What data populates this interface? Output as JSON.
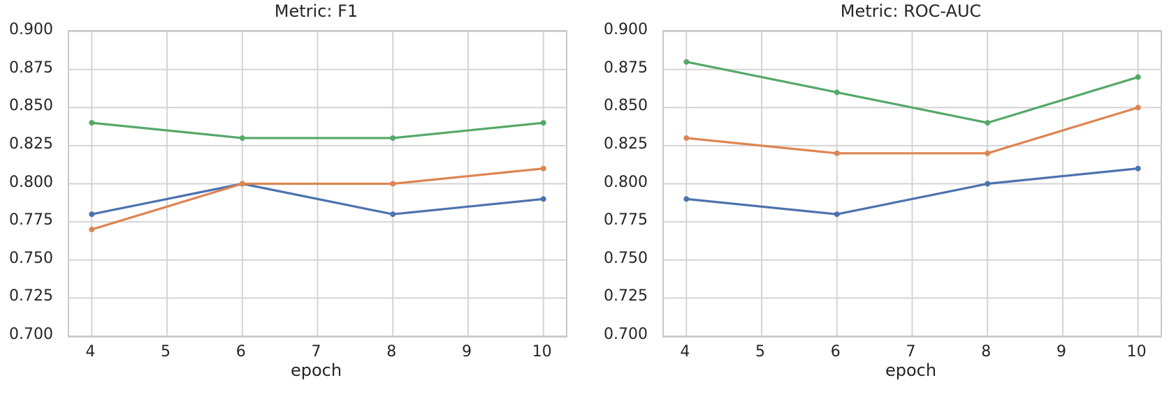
{
  "style": {
    "background": "#ffffff",
    "grid_color": "#d4d4d4",
    "spine_color": "#c9c9c9",
    "text_color": "#262626"
  },
  "chart_data": [
    {
      "type": "line",
      "title": "Metric: F1",
      "xlabel": "epoch",
      "ylabel": "",
      "x": [
        4,
        6,
        8,
        10
      ],
      "xlim": [
        3.7,
        10.3
      ],
      "ylim": [
        0.7,
        0.9
      ],
      "xticks": [
        4,
        5,
        6,
        7,
        8,
        9,
        10
      ],
      "xtick_labels": [
        "4",
        "5",
        "6",
        "7",
        "8",
        "9",
        "10"
      ],
      "yticks": [
        0.7,
        0.725,
        0.75,
        0.775,
        0.8,
        0.825,
        0.85,
        0.875,
        0.9
      ],
      "ytick_labels": [
        "0.700",
        "0.725",
        "0.750",
        "0.775",
        "0.800",
        "0.825",
        "0.850",
        "0.875",
        "0.900"
      ],
      "grid": true,
      "legend": "none",
      "series": [
        {
          "name": "blue",
          "color": "#4C72B0",
          "values": [
            0.78,
            0.8,
            0.78,
            0.79
          ]
        },
        {
          "name": "orange",
          "color": "#DD8452",
          "values": [
            0.77,
            0.8,
            0.8,
            0.81
          ]
        },
        {
          "name": "green",
          "color": "#55A868",
          "values": [
            0.84,
            0.83,
            0.83,
            0.84
          ]
        }
      ]
    },
    {
      "type": "line",
      "title": "Metric: ROC-AUC",
      "xlabel": "epoch",
      "ylabel": "",
      "x": [
        4,
        6,
        8,
        10
      ],
      "xlim": [
        3.7,
        10.3
      ],
      "ylim": [
        0.7,
        0.9
      ],
      "xticks": [
        4,
        5,
        6,
        7,
        8,
        9,
        10
      ],
      "xtick_labels": [
        "4",
        "5",
        "6",
        "7",
        "8",
        "9",
        "10"
      ],
      "yticks": [
        0.7,
        0.725,
        0.75,
        0.775,
        0.8,
        0.825,
        0.85,
        0.875,
        0.9
      ],
      "ytick_labels": [
        "0.700",
        "0.725",
        "0.750",
        "0.775",
        "0.800",
        "0.825",
        "0.850",
        "0.875",
        "0.900"
      ],
      "grid": true,
      "legend": "none",
      "series": [
        {
          "name": "blue",
          "color": "#4C72B0",
          "values": [
            0.79,
            0.78,
            0.8,
            0.81
          ]
        },
        {
          "name": "orange",
          "color": "#DD8452",
          "values": [
            0.83,
            0.82,
            0.82,
            0.85
          ]
        },
        {
          "name": "green",
          "color": "#55A868",
          "values": [
            0.88,
            0.86,
            0.84,
            0.87
          ]
        }
      ]
    }
  ]
}
